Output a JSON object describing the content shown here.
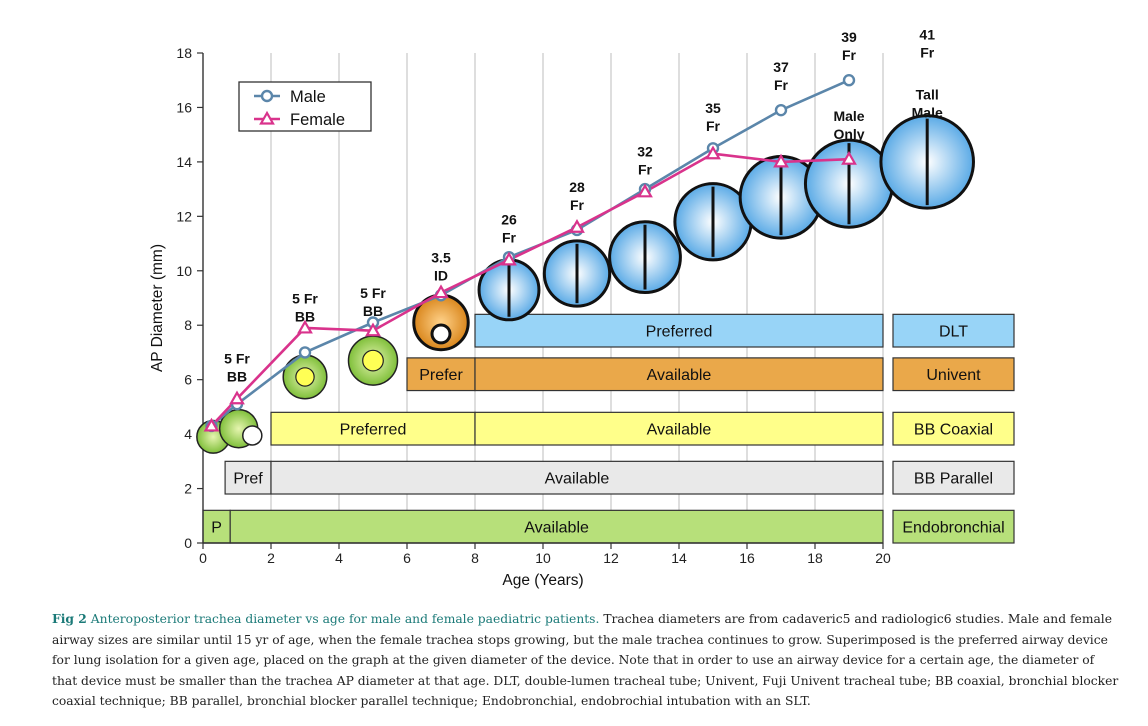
{
  "chart_data": {
    "type": "line",
    "xlabel": "Age (Years)",
    "ylabel": "AP Diameter (mm)",
    "xlim": [
      0,
      20
    ],
    "ylim": [
      0,
      18
    ],
    "xticks": [
      0,
      2,
      4,
      6,
      8,
      10,
      12,
      14,
      16,
      18,
      20
    ],
    "yticks": [
      0,
      2,
      4,
      6,
      8,
      10,
      12,
      14,
      16,
      18
    ],
    "grid": "vertical lines at even ages",
    "legend_position": "top-left",
    "series": [
      {
        "name": "Male",
        "color": "#5b86aa",
        "marker": "circle",
        "x": [
          0.25,
          1,
          3,
          5,
          7,
          9,
          11,
          13,
          15,
          17,
          19
        ],
        "y": [
          4.3,
          5.1,
          7.0,
          8.1,
          9.1,
          10.5,
          11.5,
          13.0,
          14.5,
          15.9,
          17.0
        ]
      },
      {
        "name": "Female",
        "color": "#d9338c",
        "marker": "triangle",
        "x": [
          0.25,
          1,
          3,
          5,
          7,
          9,
          11,
          13,
          15,
          17,
          19
        ],
        "y": [
          4.3,
          5.3,
          7.9,
          7.8,
          9.2,
          10.4,
          11.6,
          12.9,
          14.3,
          14.0,
          14.1
        ]
      }
    ],
    "bands": [
      {
        "label": "P",
        "x0": 0,
        "x1": 0.8,
        "y0": 0,
        "y1": 1.2,
        "color": "#b7e07a"
      },
      {
        "label": "Available",
        "x0": 0.8,
        "x1": 20,
        "y0": 0,
        "y1": 1.2,
        "color": "#b7e07a"
      },
      {
        "label": "Pref",
        "x0": 0.65,
        "x1": 2,
        "y0": 1.8,
        "y1": 3.0,
        "color": "#e9e9e9"
      },
      {
        "label": "Available",
        "x0": 2,
        "x1": 20,
        "y0": 1.8,
        "y1": 3.0,
        "color": "#e9e9e9"
      },
      {
        "label": "Preferred",
        "x0": 2,
        "x1": 8,
        "y0": 3.6,
        "y1": 4.8,
        "color": "#ffff8a"
      },
      {
        "label": "Available",
        "x0": 8,
        "x1": 20,
        "y0": 3.6,
        "y1": 4.8,
        "color": "#ffff8a"
      },
      {
        "label": "Prefer",
        "x0": 6,
        "x1": 8,
        "y0": 5.6,
        "y1": 6.8,
        "color": "#eaa84a"
      },
      {
        "label": "Available",
        "x0": 8,
        "x1": 20,
        "y0": 5.6,
        "y1": 6.8,
        "color": "#eaa84a"
      },
      {
        "label": "Preferred",
        "x0": 8,
        "x1": 20,
        "y0": 7.2,
        "y1": 8.4,
        "color": "#98d4f7"
      }
    ],
    "side_labels": [
      {
        "label": "DLT",
        "y0": 7.2,
        "y1": 8.4,
        "color": "#98d4f7"
      },
      {
        "label": "Univent",
        "y0": 5.6,
        "y1": 6.8,
        "color": "#eaa84a"
      },
      {
        "label": "BB Coaxial",
        "y0": 3.6,
        "y1": 4.8,
        "color": "#ffff8a"
      },
      {
        "label": "BB Parallel",
        "y0": 1.8,
        "y1": 3.0,
        "color": "#e9e9e9"
      },
      {
        "label": "Endobronchial",
        "y0": 0,
        "y1": 1.2,
        "color": "#b7e07a"
      }
    ],
    "annotations": [
      {
        "lines": [
          "5 Fr",
          "BB"
        ],
        "x": 1,
        "y": 6.6
      },
      {
        "lines": [
          "5 Fr",
          "BB"
        ],
        "x": 3,
        "y": 8.8
      },
      {
        "lines": [
          "5 Fr",
          "BB"
        ],
        "x": 5,
        "y": 9.0
      },
      {
        "lines": [
          "3.5",
          "ID"
        ],
        "x": 7,
        "y": 10.3
      },
      {
        "lines": [
          "26",
          "Fr"
        ],
        "x": 9,
        "y": 11.7
      },
      {
        "lines": [
          "28",
          "Fr"
        ],
        "x": 11,
        "y": 12.9
      },
      {
        "lines": [
          "32",
          "Fr"
        ],
        "x": 13,
        "y": 14.2
      },
      {
        "lines": [
          "35",
          "Fr"
        ],
        "x": 15,
        "y": 15.8
      },
      {
        "lines": [
          "37",
          "Fr"
        ],
        "x": 17,
        "y": 17.3
      },
      {
        "lines": [
          "39",
          "Fr"
        ],
        "x": 19,
        "y": 18.4
      },
      {
        "lines": [
          "Male",
          "Only"
        ],
        "x": 19,
        "y": 15.5
      },
      {
        "lines": [
          "41",
          "Fr"
        ],
        "x": 21.3,
        "y": 18.5
      },
      {
        "lines": [
          "Tall",
          "Male"
        ],
        "x": 21.3,
        "y": 16.3
      }
    ],
    "devices": [
      {
        "x": 0.3,
        "y": 3.9,
        "d": 1.2,
        "kind": "green"
      },
      {
        "x": 1.05,
        "y": 4.2,
        "d": 1.4,
        "kind": "green"
      },
      {
        "x": 1.45,
        "y": 3.95,
        "d": 0.7,
        "kind": "white"
      },
      {
        "x": 3,
        "y": 6.1,
        "d": 1.6,
        "kind": "green-yellow"
      },
      {
        "x": 5,
        "y": 6.7,
        "d": 1.8,
        "kind": "green-yellow"
      },
      {
        "x": 7,
        "y": 8.1,
        "d": 2.0,
        "kind": "orange"
      },
      {
        "x": 9,
        "y": 9.3,
        "d": 2.2,
        "kind": "blue"
      },
      {
        "x": 11,
        "y": 9.9,
        "d": 2.4,
        "kind": "blue"
      },
      {
        "x": 13,
        "y": 10.5,
        "d": 2.6,
        "kind": "blue"
      },
      {
        "x": 15,
        "y": 11.8,
        "d": 2.8,
        "kind": "blue"
      },
      {
        "x": 17,
        "y": 12.7,
        "d": 3.0,
        "kind": "blue"
      },
      {
        "x": 19,
        "y": 13.2,
        "d": 3.2,
        "kind": "blue"
      },
      {
        "x": 21.3,
        "y": 14.0,
        "d": 3.4,
        "kind": "blue"
      }
    ]
  },
  "caption": {
    "label": "Fig 2",
    "title": "Anteroposterior trachea diameter vs age for male and female paediatric patients.",
    "body": "Trachea diameters are from cadaveric5 and radiologic6 studies. Male and female airway sizes are similar until 15 yr of age, when the female trachea stops growing, but the male trachea continues to grow. Superimposed is the preferred airway device for lung isolation for a given age, placed on the graph at the given diameter of the device. Note that in order to use an airway device for a certain age, the diameter of that device must be smaller than the trachea AP diameter at that age. DLT, double-lumen tracheal tube; Univent, Fuji Univent tracheal tube; BB coaxial, bronchial blocker coaxial technique; BB parallel, bronchial blocker parallel technique; Endobronchial, endobrochial intubation with an SLT."
  }
}
